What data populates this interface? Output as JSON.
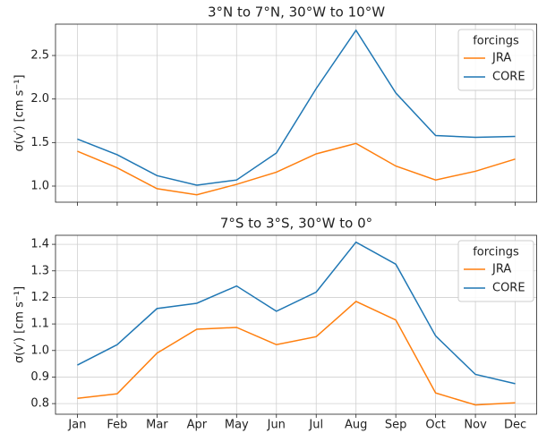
{
  "chart_data": [
    {
      "type": "line",
      "title": "3°N to 7°N, 30°W to 10°W",
      "y_label": "σ(v′) [cm s⁻¹]",
      "categories": [
        null,
        null,
        null,
        null,
        null,
        null,
        null,
        null,
        null,
        null,
        null,
        null
      ],
      "series": [
        {
          "name": "JRA",
          "color": "#ff7f0e",
          "values": [
            1.4,
            1.21,
            0.97,
            0.9,
            1.02,
            1.16,
            1.37,
            1.49,
            1.23,
            1.07,
            1.17,
            1.31
          ]
        },
        {
          "name": "CORE",
          "color": "#1f77b4",
          "values": [
            1.54,
            1.36,
            1.12,
            1.01,
            1.07,
            1.38,
            2.12,
            2.79,
            2.07,
            1.58,
            1.56,
            1.57
          ]
        }
      ],
      "legend_title": "forcings",
      "legend": "upper right",
      "ylim": [
        0.815,
        2.86
      ],
      "yticks": [
        {
          "value": 1,
          "label": "1.0"
        },
        1.5,
        {
          "value": 2,
          "label": "2.0"
        },
        2.5
      ],
      "grid": true
    },
    {
      "type": "line",
      "title": "7°S to 3°S, 30°W to 0°",
      "y_label": "σ(v′) [cm s⁻¹]",
      "categories": [
        "Jan",
        "Feb",
        "Mar",
        "Apr",
        "May",
        "Jun",
        "Jul",
        "Aug",
        "Sep",
        "Oct",
        "Nov",
        "Dec"
      ],
      "series": [
        {
          "name": "JRA",
          "color": "#ff7f0e",
          "values": [
            0.82,
            0.837,
            0.99,
            1.08,
            1.087,
            1.022,
            1.052,
            1.185,
            1.115,
            0.84,
            0.795,
            0.803
          ]
        },
        {
          "name": "CORE",
          "color": "#1f77b4",
          "values": [
            0.945,
            1.022,
            1.158,
            1.178,
            1.243,
            1.148,
            1.22,
            1.408,
            1.325,
            1.055,
            0.91,
            0.875
          ]
        }
      ],
      "legend_title": "forcings",
      "legend": "upper right",
      "ylim": [
        0.76,
        1.434
      ],
      "yticks": [
        0.8,
        0.9,
        {
          "value": 1,
          "label": "1.0"
        },
        1.1,
        1.2,
        1.3,
        1.4
      ],
      "grid": true
    }
  ]
}
